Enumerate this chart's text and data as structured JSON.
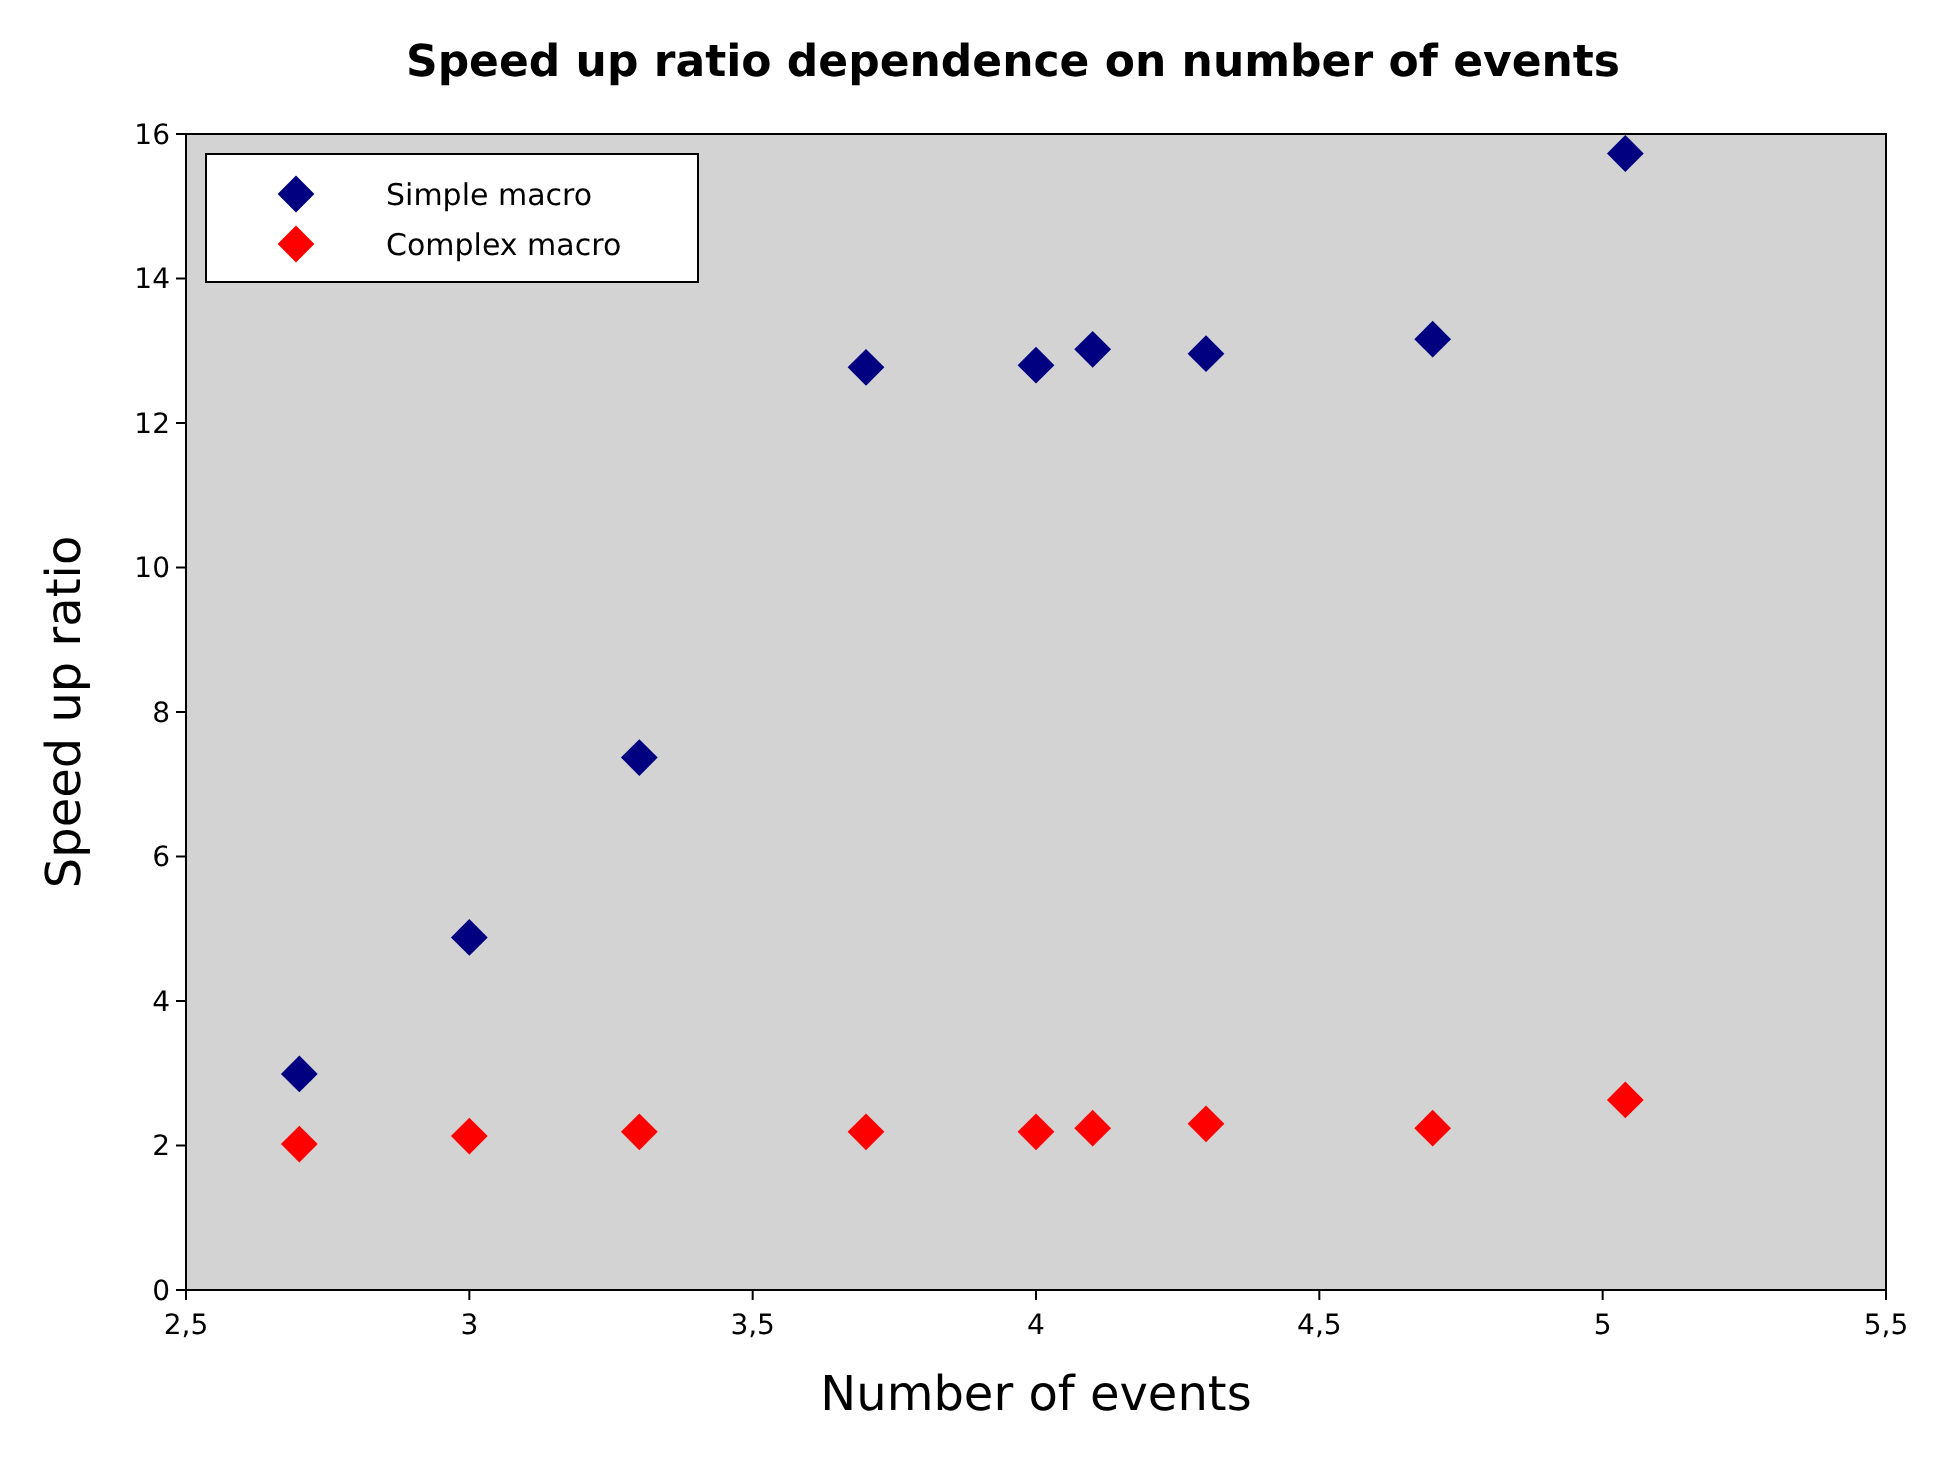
{
  "chart_data": {
    "type": "scatter",
    "title": "Speed up ratio dependence on number of events",
    "xlabel": "Number of events",
    "ylabel": "Speed up ratio",
    "x": [
      2.7,
      3,
      3.3,
      3.7,
      4,
      4.1,
      4.3,
      4.7,
      5.04
    ],
    "series": [
      {
        "name": "Simple macro",
        "color": "#000080",
        "values": [
          2.99,
          4.88,
          7.37,
          12.77,
          12.8,
          13.02,
          12.96,
          13.16,
          15.73
        ]
      },
      {
        "name": "Complex macro",
        "color": "#ff0000",
        "values": [
          2.02,
          2.13,
          2.19,
          2.19,
          2.19,
          2.24,
          2.3,
          2.24,
          2.63
        ]
      }
    ],
    "xlim": [
      2.5,
      5.5
    ],
    "xticks": [
      {
        "value": 2.5,
        "label": "2,5"
      },
      3,
      {
        "value": 3.5,
        "label": "3,5"
      },
      4,
      {
        "value": 4.5,
        "label": "4,5"
      },
      5,
      {
        "value": 5.5,
        "label": "5,5"
      }
    ],
    "ylim": [
      0,
      16
    ],
    "yticks": [
      0,
      2,
      4,
      6,
      8,
      10,
      12,
      14,
      16
    ],
    "grid": false,
    "legend": "top left",
    "marker": "diamond"
  }
}
